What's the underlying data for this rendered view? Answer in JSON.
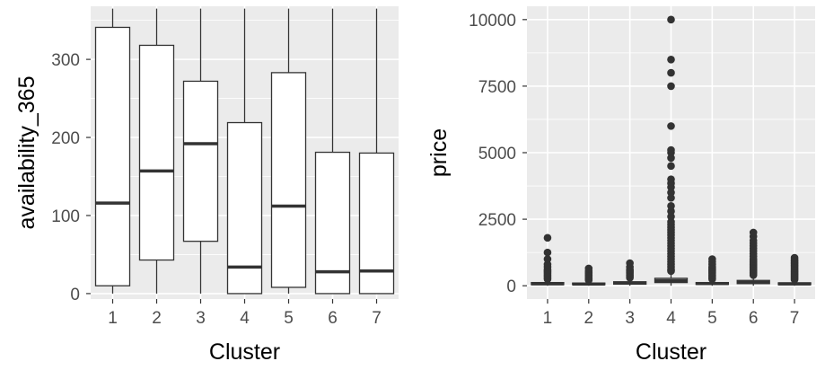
{
  "chart_data": [
    {
      "type": "boxplot",
      "xlabel": "Cluster",
      "ylabel": "availability_365",
      "categories": [
        "1",
        "2",
        "3",
        "4",
        "5",
        "6",
        "7"
      ],
      "ylim": [
        -7,
        368
      ],
      "yticks": [
        0,
        100,
        200,
        300
      ],
      "boxes": [
        {
          "min": 0,
          "q1": 10,
          "median": 116,
          "q3": 341,
          "max": 365
        },
        {
          "min": 0,
          "q1": 43,
          "median": 157,
          "q3": 318,
          "max": 365
        },
        {
          "min": 0,
          "q1": 67,
          "median": 192,
          "q3": 272,
          "max": 365
        },
        {
          "min": 0,
          "q1": 0,
          "median": 34,
          "q3": 219,
          "max": 365
        },
        {
          "min": 0,
          "q1": 8,
          "median": 112,
          "q3": 283,
          "max": 365
        },
        {
          "min": 0,
          "q1": 0,
          "median": 28,
          "q3": 181,
          "max": 365
        },
        {
          "min": 0,
          "q1": 0,
          "median": 29,
          "q3": 180,
          "max": 365
        }
      ],
      "outliers": [
        [],
        [],
        [],
        [],
        [],
        [],
        []
      ],
      "grid": true,
      "legend": "none"
    },
    {
      "type": "boxplot",
      "xlabel": "Cluster",
      "ylabel": "price",
      "categories": [
        "1",
        "2",
        "3",
        "4",
        "5",
        "6",
        "7"
      ],
      "ylim": [
        -500,
        10500
      ],
      "yticks": [
        0,
        2500,
        5000,
        7500,
        10000
      ],
      "boxes": [
        {
          "min": 0,
          "q1": 40,
          "median": 75,
          "q3": 120,
          "max": 230
        },
        {
          "min": 0,
          "q1": 40,
          "median": 65,
          "q3": 100,
          "max": 190
        },
        {
          "min": 0,
          "q1": 60,
          "median": 100,
          "q3": 150,
          "max": 285
        },
        {
          "min": 0,
          "q1": 120,
          "median": 190,
          "q3": 280,
          "max": 520
        },
        {
          "min": 0,
          "q1": 50,
          "median": 80,
          "q3": 120,
          "max": 225
        },
        {
          "min": 0,
          "q1": 80,
          "median": 130,
          "q3": 200,
          "max": 380
        },
        {
          "min": 0,
          "q1": 40,
          "median": 70,
          "q3": 110,
          "max": 210
        }
      ],
      "outliers": [
        [
          250,
          300,
          350,
          400,
          450,
          500,
          550,
          600,
          700,
          800,
          1000,
          1250,
          1800
        ],
        [
          210,
          250,
          300,
          350,
          400,
          450,
          500,
          550,
          650
        ],
        [
          300,
          350,
          400,
          450,
          500,
          550,
          600,
          700,
          850
        ],
        [
          550,
          600,
          700,
          800,
          900,
          1000,
          1100,
          1200,
          1300,
          1400,
          1500,
          1600,
          1700,
          1800,
          1900,
          2000,
          2100,
          2200,
          2300,
          2400,
          2600,
          2800,
          3000,
          3300,
          3500,
          3700,
          3850,
          4000,
          4500,
          4800,
          5000,
          5100,
          6000,
          7500,
          8000,
          8500,
          10000
        ],
        [
          250,
          300,
          350,
          400,
          450,
          500,
          550,
          600,
          650,
          700,
          800,
          900,
          1000
        ],
        [
          400,
          450,
          500,
          550,
          600,
          650,
          700,
          750,
          800,
          850,
          900,
          950,
          1000,
          1100,
          1200,
          1300,
          1400,
          1500,
          1600,
          1700,
          1850,
          2000
        ],
        [
          230,
          280,
          330,
          380,
          430,
          480,
          530,
          580,
          630,
          680,
          730,
          780,
          830,
          880,
          930,
          980,
          1050
        ]
      ],
      "grid": true,
      "legend": "none"
    }
  ]
}
